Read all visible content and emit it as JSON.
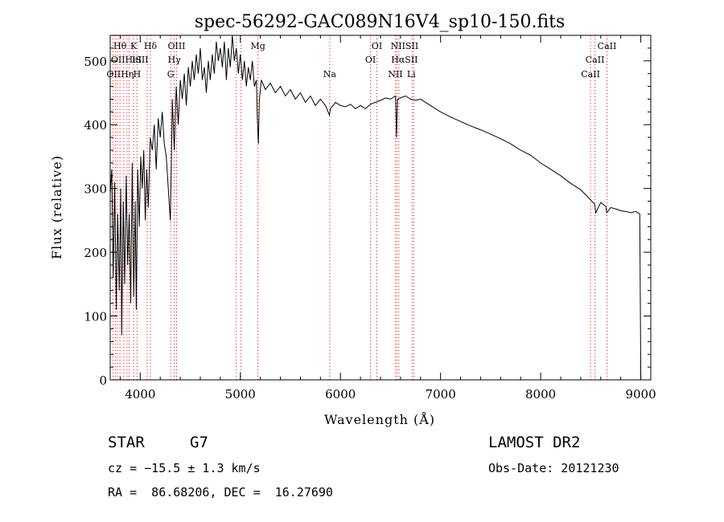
{
  "chart_data": {
    "type": "line",
    "title": "spec-56292-GAC089N16V4_sp10-150.fits",
    "xlabel": "Wavelength (Å)",
    "ylabel": "Flux (relative)",
    "xlim": [
      3700,
      9100
    ],
    "ylim": [
      0,
      540
    ],
    "xticks": [
      4000,
      5000,
      6000,
      7000,
      8000,
      9000
    ],
    "yticks": [
      0,
      100,
      200,
      300,
      400,
      500
    ],
    "grid": false,
    "series": [
      {
        "values": [
          [
            3700,
            290
          ],
          [
            3715,
            330
          ],
          [
            3730,
            160
          ],
          [
            3745,
            310
          ],
          [
            3760,
            110
          ],
          [
            3775,
            260
          ],
          [
            3790,
            140
          ],
          [
            3805,
            300
          ],
          [
            3815,
            70
          ],
          [
            3830,
            280
          ],
          [
            3845,
            150
          ],
          [
            3860,
            320
          ],
          [
            3875,
            180
          ],
          [
            3890,
            260
          ],
          [
            3905,
            120
          ],
          [
            3920,
            340
          ],
          [
            3935,
            130
          ],
          [
            3950,
            280
          ],
          [
            3960,
            110
          ],
          [
            3975,
            330
          ],
          [
            3990,
            240
          ],
          [
            4005,
            350
          ],
          [
            4020,
            300
          ],
          [
            4035,
            360
          ],
          [
            4050,
            250
          ],
          [
            4065,
            330
          ],
          [
            4080,
            270
          ],
          [
            4100,
            380
          ],
          [
            4120,
            360
          ],
          [
            4140,
            400
          ],
          [
            4160,
            330
          ],
          [
            4180,
            410
          ],
          [
            4200,
            380
          ],
          [
            4220,
            420
          ],
          [
            4240,
            370
          ],
          [
            4260,
            350
          ],
          [
            4280,
            300
          ],
          [
            4300,
            250
          ],
          [
            4310,
            330
          ],
          [
            4320,
            440
          ],
          [
            4340,
            360
          ],
          [
            4360,
            460
          ],
          [
            4380,
            400
          ],
          [
            4400,
            470
          ],
          [
            4420,
            440
          ],
          [
            4440,
            480
          ],
          [
            4460,
            430
          ],
          [
            4480,
            490
          ],
          [
            4500,
            460
          ],
          [
            4520,
            500
          ],
          [
            4540,
            470
          ],
          [
            4560,
            510
          ],
          [
            4580,
            480
          ],
          [
            4600,
            520
          ],
          [
            4620,
            470
          ],
          [
            4640,
            490
          ],
          [
            4660,
            450
          ],
          [
            4680,
            500
          ],
          [
            4700,
            470
          ],
          [
            4720,
            510
          ],
          [
            4740,
            480
          ],
          [
            4760,
            530
          ],
          [
            4780,
            500
          ],
          [
            4800,
            520
          ],
          [
            4820,
            490
          ],
          [
            4840,
            530
          ],
          [
            4860,
            470
          ],
          [
            4880,
            520
          ],
          [
            4900,
            490
          ],
          [
            4920,
            540
          ],
          [
            4940,
            500
          ],
          [
            4960,
            520
          ],
          [
            4980,
            480
          ],
          [
            5000,
            510
          ],
          [
            5020,
            470
          ],
          [
            5040,
            500
          ],
          [
            5060,
            460
          ],
          [
            5080,
            490
          ],
          [
            5100,
            470
          ],
          [
            5120,
            500
          ],
          [
            5140,
            460
          ],
          [
            5160,
            470
          ],
          [
            5170,
            410
          ],
          [
            5180,
            370
          ],
          [
            5190,
            440
          ],
          [
            5210,
            470
          ],
          [
            5250,
            455
          ],
          [
            5300,
            465
          ],
          [
            5350,
            450
          ],
          [
            5400,
            460
          ],
          [
            5450,
            445
          ],
          [
            5500,
            455
          ],
          [
            5550,
            440
          ],
          [
            5600,
            450
          ],
          [
            5650,
            435
          ],
          [
            5700,
            445
          ],
          [
            5750,
            430
          ],
          [
            5800,
            440
          ],
          [
            5850,
            430
          ],
          [
            5890,
            415
          ],
          [
            5900,
            425
          ],
          [
            5950,
            435
          ],
          [
            6000,
            430
          ],
          [
            6050,
            428
          ],
          [
            6100,
            432
          ],
          [
            6150,
            425
          ],
          [
            6200,
            430
          ],
          [
            6250,
            425
          ],
          [
            6300,
            432
          ],
          [
            6350,
            435
          ],
          [
            6400,
            438
          ],
          [
            6450,
            442
          ],
          [
            6500,
            440
          ],
          [
            6550,
            445
          ],
          [
            6560,
            380
          ],
          [
            6570,
            440
          ],
          [
            6600,
            442
          ],
          [
            6650,
            445
          ],
          [
            6700,
            440
          ],
          [
            6750,
            438
          ],
          [
            6800,
            440
          ],
          [
            6850,
            435
          ],
          [
            6900,
            430
          ],
          [
            6950,
            425
          ],
          [
            7000,
            420
          ],
          [
            7100,
            412
          ],
          [
            7200,
            405
          ],
          [
            7300,
            398
          ],
          [
            7400,
            392
          ],
          [
            7500,
            385
          ],
          [
            7600,
            378
          ],
          [
            7700,
            370
          ],
          [
            7800,
            360
          ],
          [
            7900,
            352
          ],
          [
            8000,
            340
          ],
          [
            8100,
            330
          ],
          [
            8200,
            320
          ],
          [
            8300,
            308
          ],
          [
            8400,
            298
          ],
          [
            8450,
            290
          ],
          [
            8500,
            282
          ],
          [
            8540,
            275
          ],
          [
            8550,
            262
          ],
          [
            8600,
            278
          ],
          [
            8650,
            272
          ],
          [
            8660,
            262
          ],
          [
            8700,
            270
          ],
          [
            8750,
            268
          ],
          [
            8800,
            265
          ],
          [
            8850,
            264
          ],
          [
            8900,
            262
          ],
          [
            8950,
            264
          ],
          [
            8990,
            260
          ],
          [
            9000,
            0
          ]
        ]
      }
    ],
    "annotations": [
      {
        "label": "Hθ",
        "x": 3797,
        "row": 1
      },
      {
        "label": "K",
        "x": 3934,
        "row": 1
      },
      {
        "label": "Hδ",
        "x": 4102,
        "row": 1
      },
      {
        "label": "OIII",
        "x": 4363,
        "row": 1
      },
      {
        "label": "Mg",
        "x": 5175,
        "row": 1
      },
      {
        "label": "OI",
        "x": 6364,
        "row": 1
      },
      {
        "label": "NIISII",
        "x": 6640,
        "row": 1
      },
      {
        "label": "CaII",
        "x": 8662,
        "row": 1
      },
      {
        "label": "OIIHeI",
        "x": 3860,
        "row": 2
      },
      {
        "label": "ISII",
        "x": 4000,
        "row": 2
      },
      {
        "label": "Hγ",
        "x": 4340,
        "row": 2
      },
      {
        "label": "OI",
        "x": 6300,
        "row": 2
      },
      {
        "label": "HαSII",
        "x": 6640,
        "row": 2
      },
      {
        "label": "CaII",
        "x": 8542,
        "row": 2
      },
      {
        "label": "OIIHη",
        "x": 3800,
        "row": 3
      },
      {
        "label": "H",
        "x": 3968,
        "row": 3
      },
      {
        "label": "G",
        "x": 4304,
        "row": 3
      },
      {
        "label": "Na",
        "x": 5893,
        "row": 3
      },
      {
        "label": "NII",
        "x": 6548,
        "row": 3
      },
      {
        "label": "Li",
        "x": 6708,
        "row": 3
      },
      {
        "label": "CaII",
        "x": 8498,
        "row": 3
      }
    ],
    "marker_lines": [
      3727,
      3750,
      3770,
      3797,
      3835,
      3868,
      3889,
      3934,
      3968,
      4070,
      4102,
      4304,
      4340,
      4363,
      4959,
      5007,
      5175,
      5893,
      6300,
      6364,
      6548,
      6563,
      6583,
      6716,
      6731,
      8498,
      8542,
      8662
    ],
    "line_color": "#000000",
    "marker_color": "#ff0000"
  },
  "info": {
    "object_type": "STAR",
    "subclass": "G7",
    "survey": "LAMOST DR2",
    "velocity": "cz = −15.5 ± 1.3 km/s",
    "obs_date": "Obs-Date: 20121230",
    "coords": "RA =  86.68206, DEC =  16.27690"
  }
}
